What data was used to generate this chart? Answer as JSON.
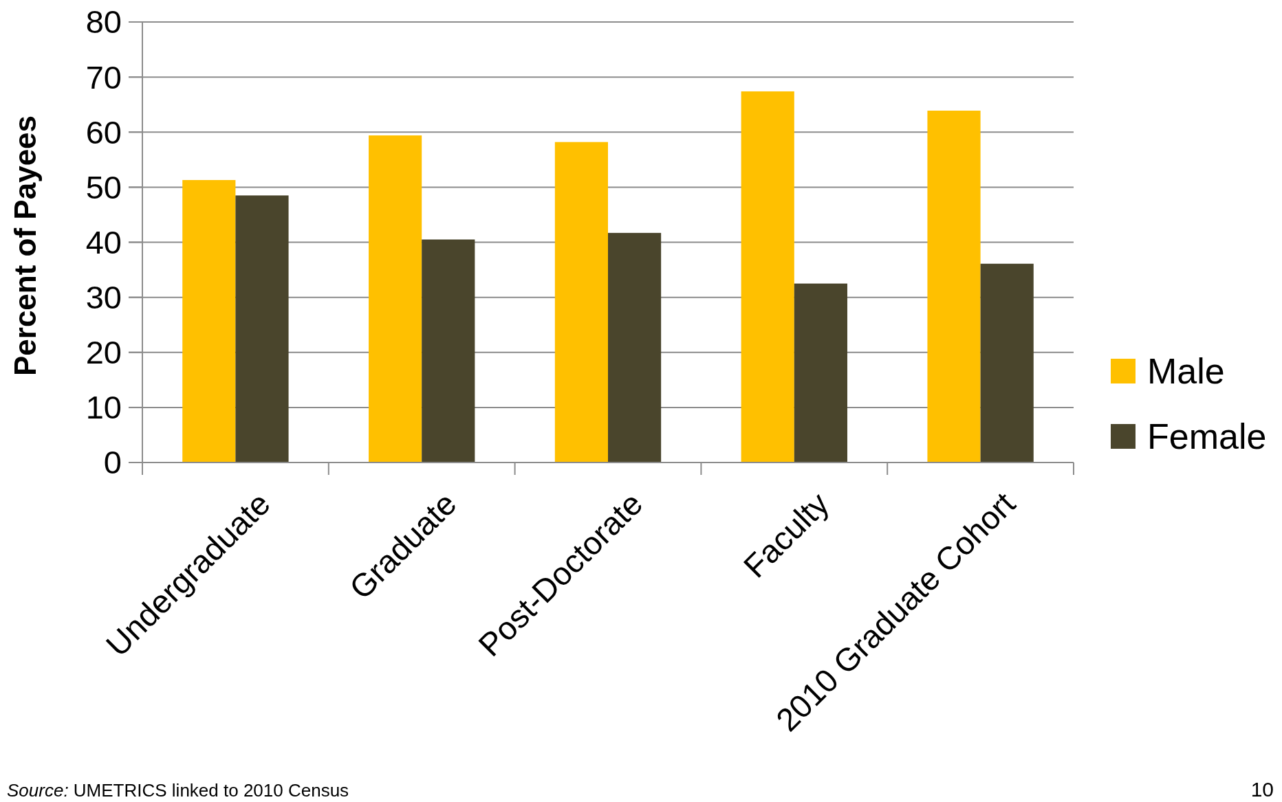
{
  "chart_data": {
    "type": "bar",
    "ylabel": "Percent of Payees",
    "categories": [
      "Undergraduate",
      "Graduate",
      "Post-Doctorate",
      "Faculty",
      "2010 Graduate Cohort"
    ],
    "series": [
      {
        "name": "Male",
        "color": "#ffc000",
        "values": [
          51.3,
          59.4,
          58.2,
          67.4,
          63.9
        ]
      },
      {
        "name": "Female",
        "color": "#4a452c",
        "values": [
          48.5,
          40.5,
          41.7,
          32.5,
          36.1
        ]
      }
    ],
    "ylim": [
      0,
      80
    ],
    "yticks": [
      0,
      10,
      20,
      30,
      40,
      50,
      60,
      70,
      80
    ],
    "grid": "y",
    "legend": "right",
    "annotations": [
      "Source: UMETRICS linked to 2010 Census",
      "10"
    ]
  }
}
